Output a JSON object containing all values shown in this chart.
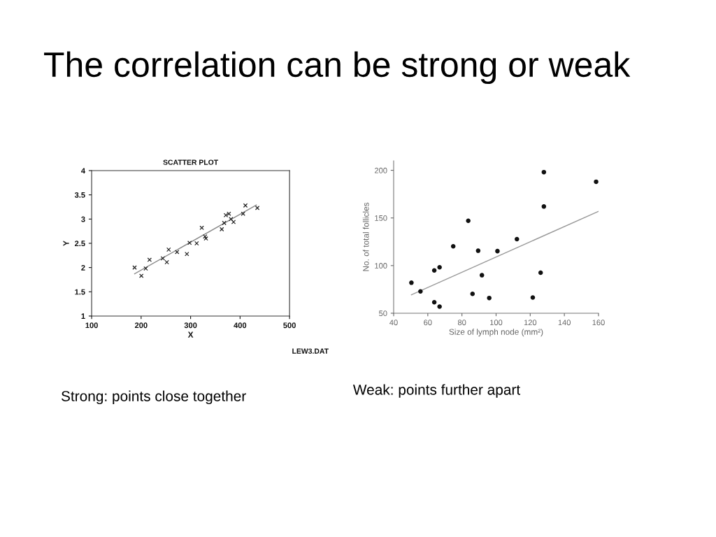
{
  "chart_data": [
    {
      "type": "scatter",
      "title": "SCATTER PLOT",
      "xlabel": "X",
      "ylabel": "Y",
      "xlim": [
        100,
        500
      ],
      "ylim": [
        1,
        4
      ],
      "xticks": [
        100,
        200,
        300,
        400,
        500
      ],
      "yticks": [
        1,
        1.5,
        2,
        2.5,
        3,
        3.5,
        4
      ],
      "grid": false,
      "legend": false,
      "annotations": [
        "The correlation can be strong or weak",
        "LEW3.DAT",
        "Strong: points close together"
      ],
      "series": [
        {
          "type": "scatter",
          "color": "#222222",
          "marker": "cross",
          "x": [
            186.8,
            200.5,
            209.4,
            217,
            243.9,
            252,
            255.7,
            272.6,
            292.5,
            298,
            312.3,
            322.6,
            329.2,
            331,
            363,
            367.9,
            371.2,
            377.4,
            381.6,
            386.8,
            406.1,
            410.8,
            434.9
          ],
          "values": [
            2.0,
            1.83,
            1.98,
            2.16,
            2.19,
            2.11,
            2.37,
            2.32,
            2.28,
            2.51,
            2.5,
            2.82,
            2.64,
            2.6,
            2.79,
            2.92,
            3.08,
            3.11,
            3.0,
            2.94,
            3.11,
            3.28,
            3.23
          ]
        },
        {
          "type": "line",
          "color": "#888888",
          "x": [
            186.8,
            433
          ],
          "values": [
            1.87,
            3.29
          ]
        }
      ]
    },
    {
      "type": "scatter",
      "xlabel": "Size of lymph node (mm²)",
      "ylabel": "No. of total follicles",
      "xlim": [
        40,
        160
      ],
      "ylim": [
        50,
        210
      ],
      "xticks": [
        40,
        60,
        80,
        100,
        120,
        140,
        160
      ],
      "yticks": [
        50,
        100,
        150,
        200
      ],
      "grid": false,
      "legend": false,
      "annotations": [
        "Weak: points further apart"
      ],
      "series": [
        {
          "type": "scatter",
          "color": "#111111",
          "marker": "circle",
          "x": [
            50.4,
            55.7,
            63.8,
            66.9,
            63.8,
            66.9,
            74.9,
            83.7,
            86.2,
            89.5,
            91.7,
            96.0,
            100.8,
            112.2,
            121.5,
            126.1,
            128.0,
            128.0,
            158.6
          ],
          "values": [
            82.0,
            72.9,
            94.9,
            98.2,
            61.5,
            56.9,
            120.2,
            147.0,
            70.3,
            115.6,
            89.9,
            66.0,
            115.2,
            127.8,
            66.5,
            92.5,
            198.1,
            162.0,
            188.0
          ]
        },
        {
          "type": "line",
          "color": "#999999",
          "x": [
            50.4,
            160
          ],
          "values": [
            69.3,
            157.0
          ]
        }
      ]
    }
  ]
}
